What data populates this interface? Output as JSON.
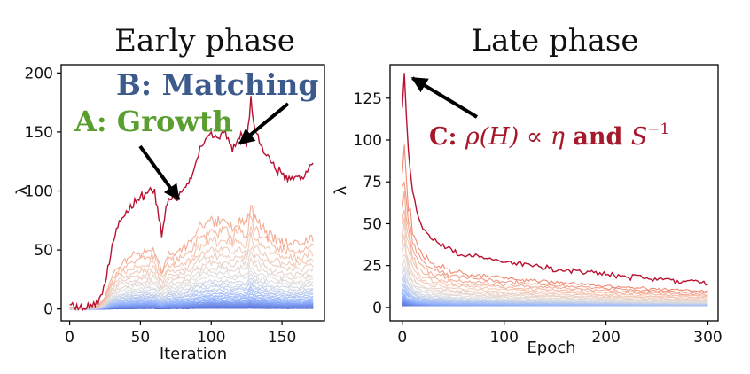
{
  "colors": {
    "hot": "#b40426",
    "cold": "#3b4cc0",
    "growth": "#5a9e2f",
    "matching": "#3c5a8c",
    "c_label": "#a5192b"
  },
  "chart_data": [
    {
      "type": "line",
      "title": "Early phase",
      "xlabel": "Iteration",
      "ylabel": "λ",
      "xlim": [
        -6,
        180
      ],
      "ylim": [
        -10,
        207
      ],
      "xticks": [
        0,
        50,
        100,
        150
      ],
      "yticks": [
        0,
        50,
        100,
        150,
        200
      ],
      "grid": false,
      "legend": "none",
      "series_count": 50,
      "series_note": "many lines colored from blue (low) to red (high)",
      "x_range": [
        0,
        172
      ],
      "top_series": {
        "name": "",
        "x": [
          0,
          10,
          20,
          25,
          30,
          35,
          40,
          45,
          50,
          55,
          60,
          65,
          70,
          75,
          80,
          85,
          90,
          95,
          100,
          105,
          110,
          115,
          120,
          125,
          128,
          130,
          135,
          140,
          145,
          150,
          155,
          160,
          165,
          170
        ],
        "values": [
          3,
          2,
          5,
          20,
          55,
          75,
          82,
          90,
          95,
          98,
          100,
          65,
          95,
          92,
          100,
          110,
          130,
          140,
          150,
          145,
          150,
          135,
          148,
          140,
          180,
          155,
          140,
          130,
          120,
          115,
          110,
          112,
          110,
          122
        ]
      },
      "other_series_peak_range": [
        2,
        75
      ],
      "annotations": [
        {
          "text": "A: Growth",
          "color": "#5a9e2f",
          "arrow_to": [
            77,
            93
          ]
        },
        {
          "text": "B: Matching",
          "color": "#3c5a8c",
          "arrow_to": [
            120,
            140
          ]
        }
      ]
    },
    {
      "type": "line",
      "title": "Late phase",
      "xlabel": "Epoch",
      "ylabel": "λ",
      "xlim": [
        -12,
        310
      ],
      "ylim": [
        -8,
        145
      ],
      "xticks": [
        0,
        100,
        200,
        300
      ],
      "yticks": [
        0,
        25,
        50,
        75,
        100,
        125
      ],
      "grid": false,
      "legend": "none",
      "series_count": 50,
      "series_note": "many lines colored from blue (low) to red (high)",
      "x_range": [
        0,
        300
      ],
      "top_series": {
        "name": "",
        "x": [
          0,
          2,
          5,
          10,
          15,
          20,
          30,
          50,
          75,
          100,
          150,
          200,
          250,
          300
        ],
        "values": [
          120,
          140,
          100,
          70,
          55,
          48,
          40,
          33,
          30,
          27,
          23,
          20,
          17,
          15
        ]
      },
      "other_series_start_range": [
        2,
        90
      ],
      "annotations": [
        {
          "text_parts": [
            "C: ",
            "ρ(H) ∝ η",
            " and ",
            "S",
            "−1"
          ],
          "color": "#a5192b",
          "arrow_to": [
            10,
            137
          ]
        }
      ]
    }
  ]
}
